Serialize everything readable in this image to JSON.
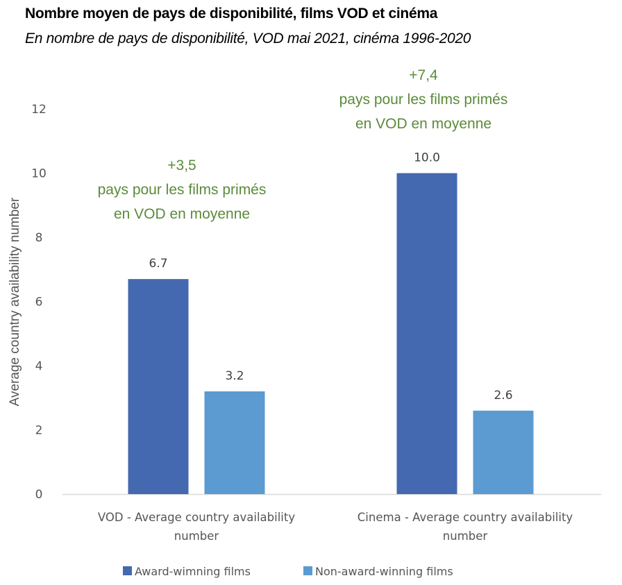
{
  "chart_data": {
    "type": "bar",
    "title": "Nombre moyen de pays de disponibilité, films VOD et cinéma",
    "subtitle": "En nombre de pays de disponibilité, VOD mai 2021, cinéma 1996-2020",
    "xlabel": "",
    "ylabel": "Average country availability number",
    "ylim": [
      0,
      12
    ],
    "yticks": [
      0,
      2,
      4,
      6,
      8,
      10,
      12
    ],
    "grid": false,
    "legend_position": "bottom",
    "categories": [
      [
        "VOD - Average country availability",
        "number"
      ],
      [
        "Cinema - Average country availability",
        "number"
      ]
    ],
    "series": [
      {
        "name": "Award-wimning films",
        "color": "#4569b0",
        "values": [
          6.7,
          10.0
        ],
        "labels": [
          "6.7",
          "10.0"
        ]
      },
      {
        "name": "Non-award-winning films",
        "color": "#5b9bd1",
        "values": [
          3.2,
          2.6
        ],
        "labels": [
          "3.2",
          "2.6"
        ]
      }
    ],
    "annotations": [
      {
        "category": 0,
        "lines": [
          "+3,5",
          "pays pour les films primés",
          "en VOD en moyenne"
        ]
      },
      {
        "category": 1,
        "lines": [
          "+7,4",
          "pays pour les films primés",
          "en VOD en moyenne"
        ]
      }
    ],
    "annotation_color": "#5b8a3a"
  }
}
